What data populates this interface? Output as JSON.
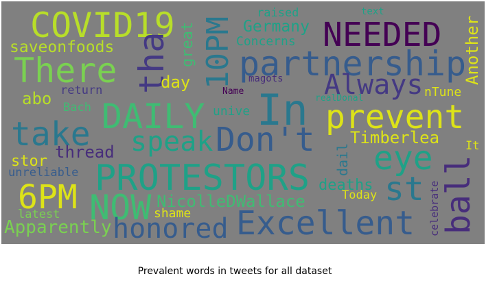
{
  "caption": "Prevalent words in tweets for all dataset",
  "words": {
    "covid19": "COVID19",
    "needed": "NEEDED",
    "partnership": "partnership",
    "there": "There",
    "tha": "tha",
    "ten_pm": "10PM",
    "daily": "DAILY",
    "in": "In",
    "always": "Always",
    "prevent": "prevent",
    "take": "take",
    "speak": "speak",
    "dont": "Don't",
    "protestors": "PROTESTORS",
    "eye": "eye",
    "six_pm": "6PM",
    "now": "NOW",
    "st": "st",
    "ball": "ball",
    "excellent": "Excellent",
    "honored": "honored",
    "apparently": "Apparently",
    "nicolle": "NicolleDWallace",
    "another": "Another",
    "saveonfoods": "saveonfoods",
    "germany": "Germany",
    "concerns": "Concerns",
    "great": "great",
    "raised": "raised",
    "text": "text",
    "day": "day",
    "abo": "abo",
    "return": "return",
    "magots": "magots",
    "name": "Name",
    "realdonal": "realDonal",
    "ntune": "nTune",
    "bach": "Bach",
    "unive": "unive",
    "timberlea": "Timberlea",
    "thread": "thread",
    "stor": "stor",
    "unreliable": "unreliable",
    "dail": "dail",
    "deaths": "deaths",
    "today": "Today",
    "it": "It",
    "shame": "shame",
    "latest": "latest",
    "celebrate": "celebrate"
  },
  "colors": {
    "background": "#808080",
    "yellow_green": "#b8de29",
    "green": "#7ad151",
    "mint": "#3fbc73",
    "teal": "#1fa187",
    "cyan": "#2a788e",
    "blue": "#365c8d",
    "indigo": "#443983",
    "purple": "#472d7b",
    "dark_purple": "#440154",
    "yellow": "#dde318"
  }
}
